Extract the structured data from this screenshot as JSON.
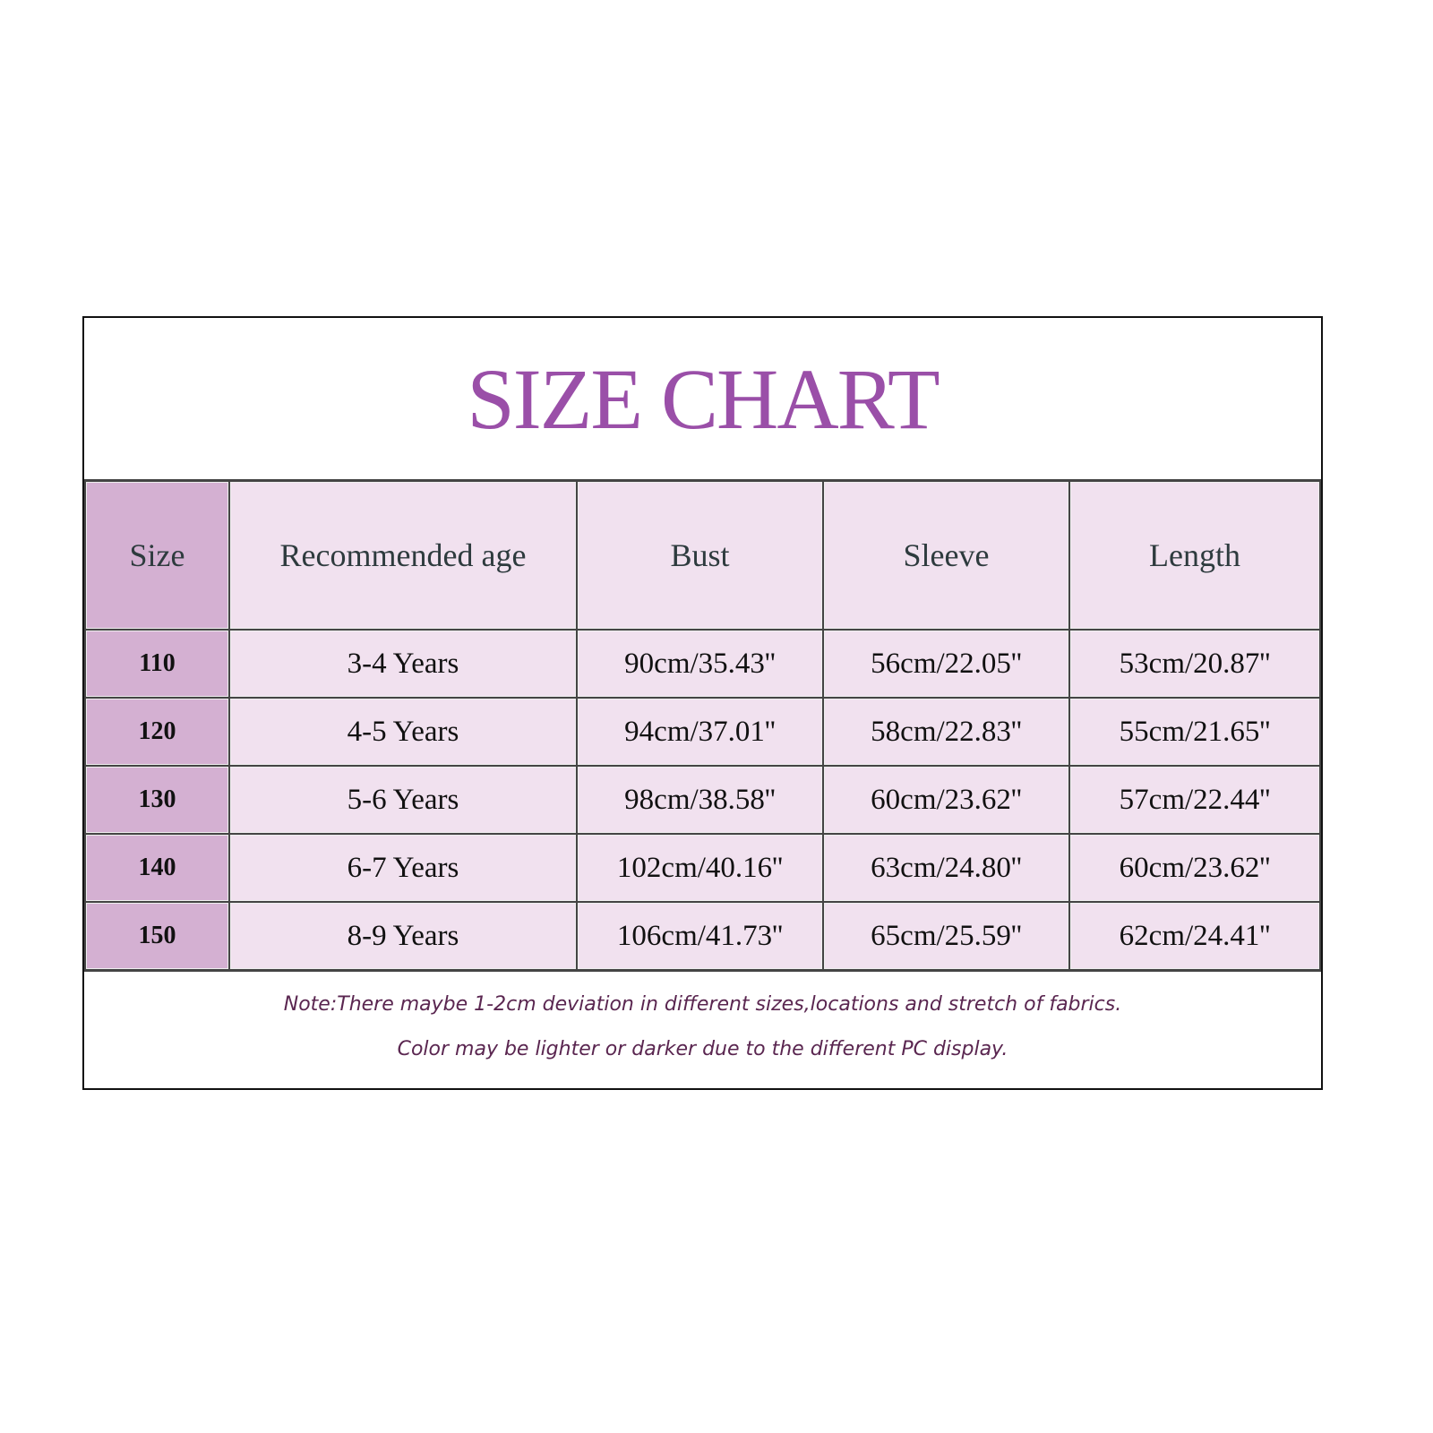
{
  "title": "SIZE CHART",
  "colors": {
    "title": "#9a4fa8",
    "size_column": "#d4b0d2",
    "cell": "#f1e1ef",
    "note": "#5a2650"
  },
  "table": {
    "headers": [
      "Size",
      "Recommended age",
      "Bust",
      "Sleeve",
      "Length"
    ],
    "rows": [
      [
        "110",
        "3-4 Years",
        "90cm/35.43''",
        "56cm/22.05''",
        "53cm/20.87''"
      ],
      [
        "120",
        "4-5 Years",
        "94cm/37.01''",
        "58cm/22.83''",
        "55cm/21.65''"
      ],
      [
        "130",
        "5-6 Years",
        "98cm/38.58''",
        "60cm/23.62''",
        "57cm/22.44''"
      ],
      [
        "140",
        "6-7 Years",
        "102cm/40.16''",
        "63cm/24.80''",
        "60cm/23.62''"
      ],
      [
        "150",
        "8-9 Years",
        "106cm/41.73''",
        "65cm/25.59''",
        "62cm/24.41''"
      ]
    ]
  },
  "notes": [
    "Note:There maybe 1-2cm deviation in different sizes,locations and stretch of fabrics.",
    "Color may be lighter or darker due to the different PC display."
  ]
}
